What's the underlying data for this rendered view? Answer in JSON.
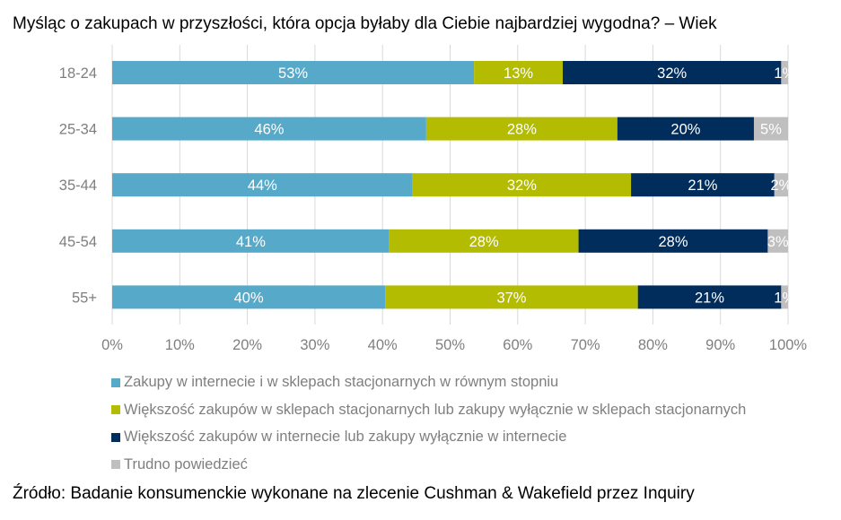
{
  "chart_data": {
    "type": "bar",
    "orientation": "horizontal",
    "stacked": true,
    "title": "Myśląc o zakupach w przyszłości, która opcja byłaby dla Ciebie najbardziej wygodna? – Wiek",
    "categories": [
      "18-24",
      "25-34",
      "35-44",
      "45-54",
      "55+"
    ],
    "series": [
      {
        "name": "Zakupy w internecie i w sklepach stacjonarnych w równym stopniu",
        "color": "#57a9c9",
        "values": [
          53,
          46,
          44,
          41,
          40
        ]
      },
      {
        "name": "Większość zakupów w sklepach stacjonarnych lub zakupy wyłącznie w sklepach stacjonarnych",
        "color": "#b3bc00",
        "values": [
          13,
          28,
          32,
          28,
          37
        ]
      },
      {
        "name": "Większość zakupów w internecie lub zakupy wyłącznie w internecie",
        "color": "#002d5c",
        "values": [
          32,
          20,
          21,
          28,
          21
        ]
      },
      {
        "name": "Trudno powiedzieć",
        "color": "#bfbfbf",
        "values": [
          1,
          5,
          2,
          3,
          1
        ]
      }
    ],
    "xlim": [
      0,
      100
    ],
    "xticks": [
      "0%",
      "10%",
      "20%",
      "30%",
      "40%",
      "50%",
      "60%",
      "70%",
      "80%",
      "90%",
      "100%"
    ],
    "grid": true,
    "legend_placement": "bottom",
    "source": "Źródło: Badanie konsumenckie wykonane na zlecenie Cushman & Wakefield przez Inquiry"
  }
}
